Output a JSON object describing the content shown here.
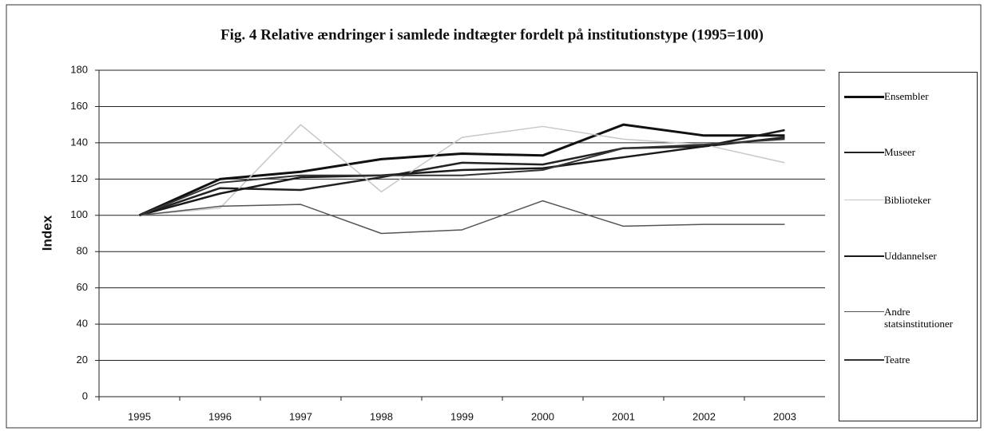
{
  "chart_data": {
    "type": "line",
    "title": "Fig. 4 Relative ændringer i samlede indtægter fordelt på institutionstype (1995=100)",
    "y_label": "Index",
    "categories": [
      "1995",
      "1996",
      "1997",
      "1998",
      "1999",
      "2000",
      "2001",
      "2002",
      "2003"
    ],
    "series": [
      {
        "name": "Ensembler",
        "color": "#111111",
        "width": 3,
        "values": [
          100,
          120,
          124,
          131,
          134,
          133,
          150,
          144,
          144
        ]
      },
      {
        "name": "Museer",
        "color": "#222222",
        "width": 2.5,
        "values": [
          100,
          115,
          114,
          121,
          129,
          128,
          137,
          138,
          143
        ]
      },
      {
        "name": "Biblioteker",
        "color": "#c8c8c8",
        "width": 1.5,
        "values": [
          100,
          104,
          150,
          113,
          143,
          149,
          142,
          139,
          129
        ]
      },
      {
        "name": "Uddannelser",
        "color": "#1a1a1a",
        "width": 2.5,
        "values": [
          100,
          112,
          121,
          122,
          125,
          126,
          132,
          138,
          147
        ]
      },
      {
        "name": "Andre statsinstitutioner",
        "color": "#555555",
        "width": 1.5,
        "values": [
          100,
          105,
          106,
          90,
          92,
          108,
          94,
          95,
          95
        ]
      },
      {
        "name": "Teatre",
        "color": "#333333",
        "width": 2,
        "values": [
          100,
          118,
          122,
          122,
          122,
          125,
          137,
          139,
          142
        ]
      }
    ],
    "ylim": [
      0,
      180
    ],
    "yticks": [
      0,
      20,
      40,
      60,
      80,
      100,
      120,
      140,
      160,
      180
    ],
    "grid": true,
    "legend": "right"
  }
}
